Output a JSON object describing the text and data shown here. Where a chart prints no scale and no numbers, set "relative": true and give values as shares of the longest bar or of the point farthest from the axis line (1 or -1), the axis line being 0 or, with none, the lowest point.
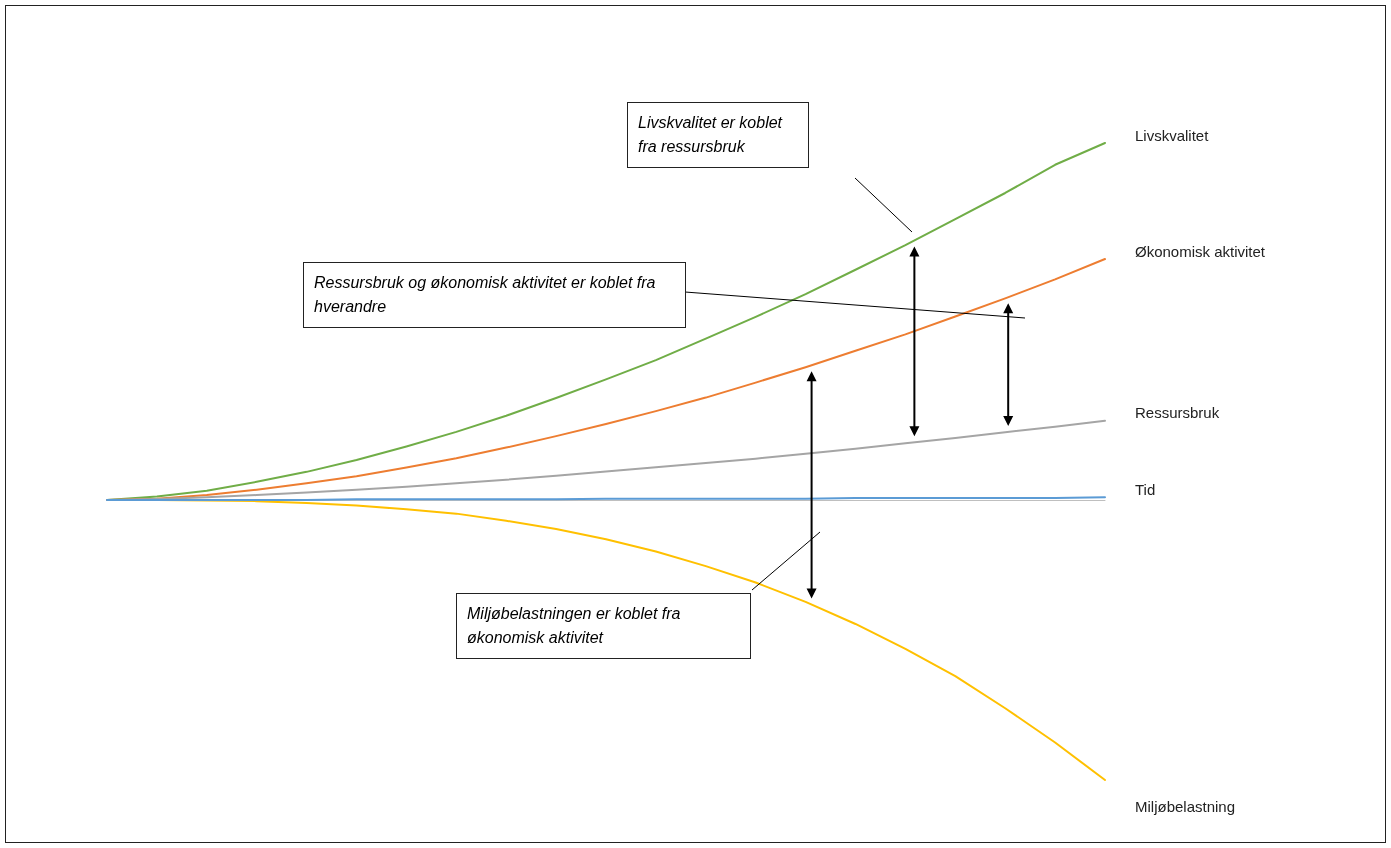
{
  "chart_data": {
    "type": "line",
    "relative": true,
    "legend": false,
    "marker": "none",
    "line_style": "solid",
    "categories": [
      null,
      null,
      null,
      null,
      null,
      null,
      null,
      null,
      null,
      null,
      null,
      null,
      null,
      null,
      null,
      null,
      null,
      null,
      null,
      null,
      null
    ],
    "series": [
      {
        "name": "Livskvalitet",
        "color": "#70ad47",
        "values": [
          0,
          0.01,
          0.026,
          0.051,
          0.079,
          0.112,
          0.15,
          0.191,
          0.236,
          0.286,
          0.338,
          0.392,
          0.452,
          0.513,
          0.577,
          0.645,
          0.714,
          0.787,
          0.86,
          0.939,
          1.0
        ]
      },
      {
        "name": "Økonomisk aktivitet",
        "color": "#ed7d31",
        "values": [
          0,
          0.004,
          0.014,
          0.029,
          0.047,
          0.067,
          0.091,
          0.117,
          0.147,
          0.179,
          0.213,
          0.249,
          0.287,
          0.329,
          0.372,
          0.418,
          0.464,
          0.514,
          0.565,
          0.618,
          0.675
        ]
      },
      {
        "name": "Ressursbruk",
        "color": "#a5a5a5",
        "values": [
          0,
          0.003,
          0.008,
          0.014,
          0.021,
          0.029,
          0.037,
          0.047,
          0.057,
          0.068,
          0.08,
          0.092,
          0.104,
          0.116,
          0.13,
          0.144,
          0.159,
          0.174,
          0.19,
          0.205,
          0.222
        ]
      },
      {
        "name": "Tid",
        "color": "#5b9bd5",
        "values": [
          0,
          0,
          0,
          0,
          0,
          0.002,
          0.002,
          0.002,
          0.002,
          0.002,
          0.004,
          0.004,
          0.004,
          0.004,
          0.004,
          0.006,
          0.006,
          0.006,
          0.006,
          0.006,
          0.008
        ]
      },
      {
        "name": "Miljøbelastning",
        "color": "#ffc000",
        "values": [
          0,
          0,
          -0.001,
          -0.003,
          -0.008,
          -0.015,
          -0.026,
          -0.038,
          -0.058,
          -0.081,
          -0.11,
          -0.144,
          -0.185,
          -0.231,
          -0.285,
          -0.347,
          -0.417,
          -0.493,
          -0.583,
          -0.679,
          -0.784
        ]
      }
    ],
    "annotations": [
      "Livskvalitet er koblet fra ressursbruk",
      "Ressursbruk og økonomisk aktivitet er koblet fra hverandre",
      "Miljøbelastningen er koblet fra økonomisk aktivitet"
    ]
  }
}
